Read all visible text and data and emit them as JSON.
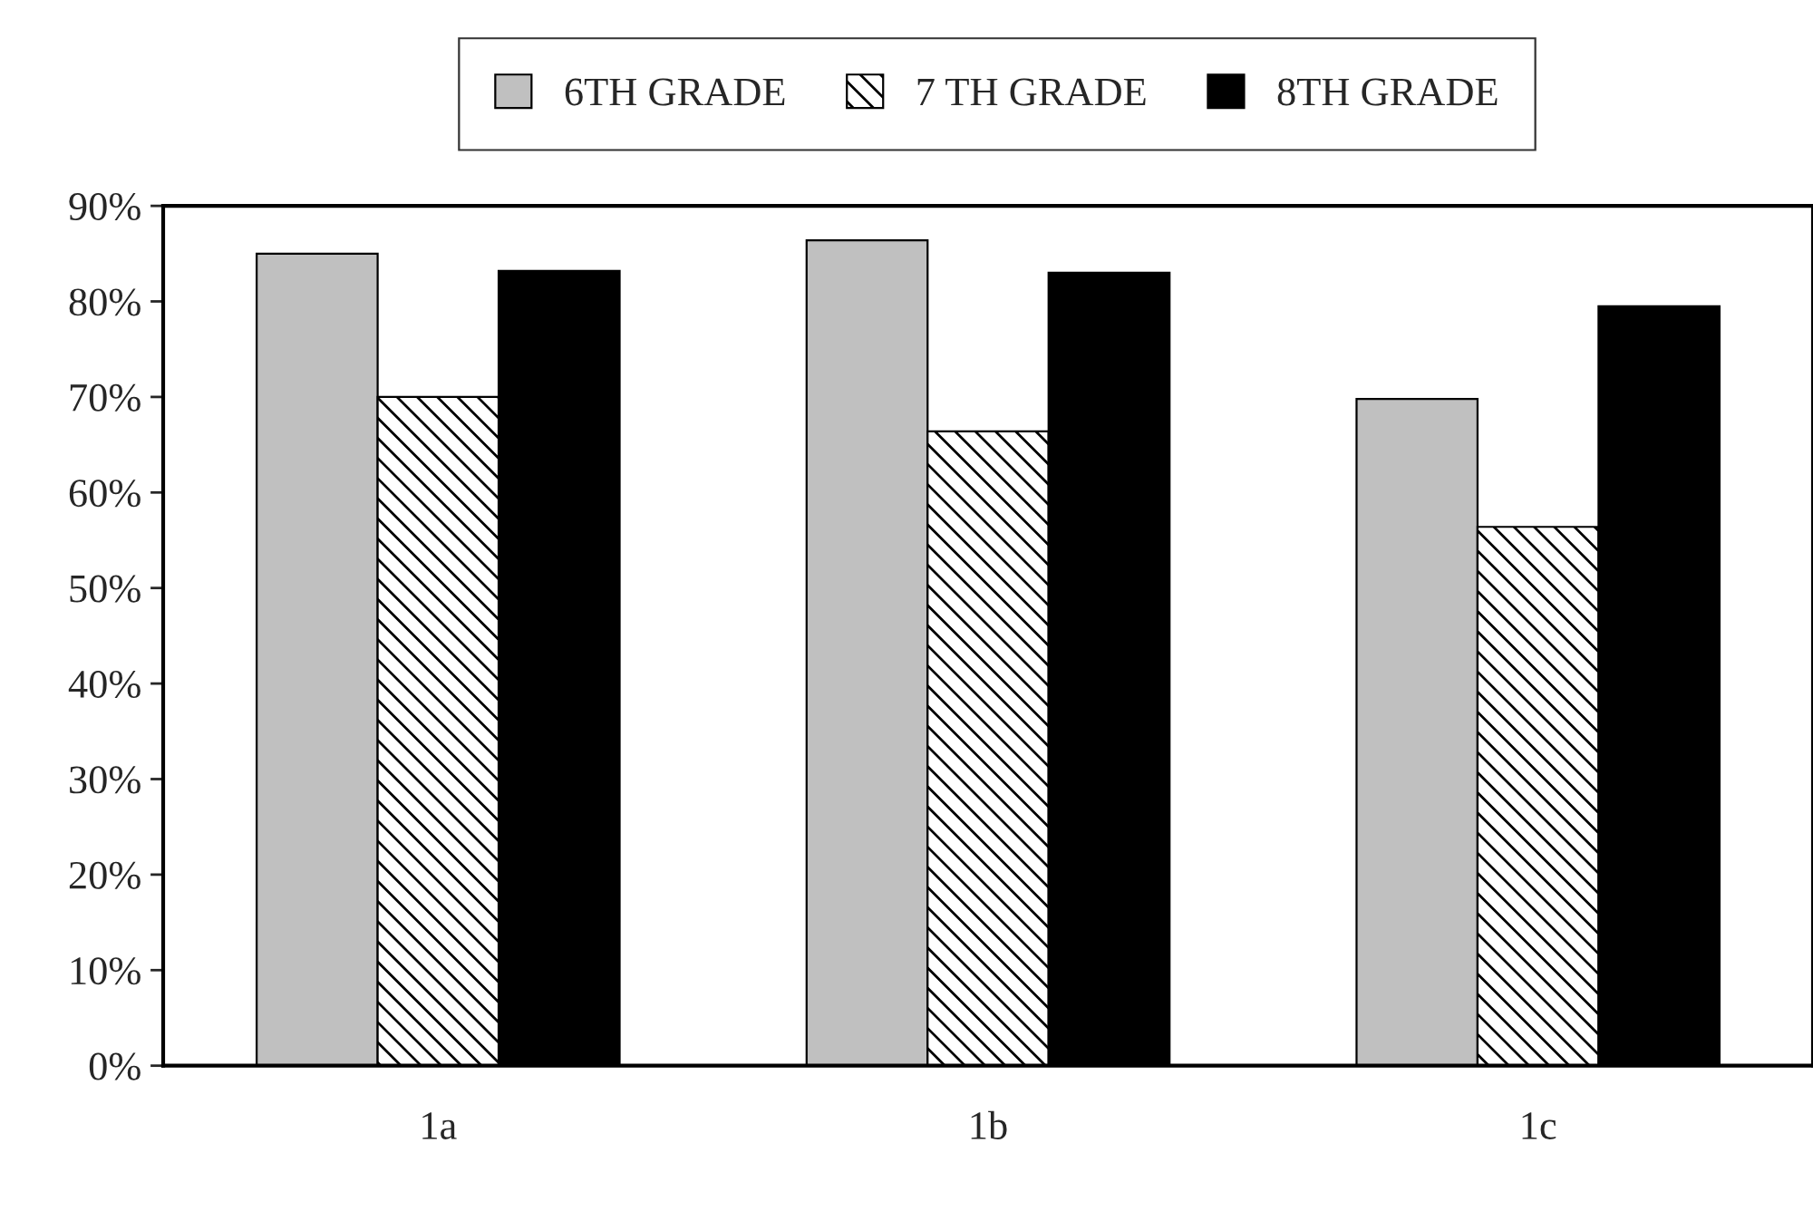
{
  "chart_data": {
    "type": "bar",
    "categories": [
      "1a",
      "1b",
      "1c"
    ],
    "series": [
      {
        "name": "6TH GRADE",
        "color": "#c0c0c0",
        "values": [
          85,
          86.4,
          69.8
        ]
      },
      {
        "name": "7 TH GRADE",
        "color": "#ffffff",
        "values": [
          70,
          66.4,
          56.4
        ]
      },
      {
        "name": "8TH GRADE",
        "color": "#000000",
        "values": [
          83.2,
          83,
          79.5
        ]
      }
    ],
    "ylim": [
      0,
      90
    ],
    "yticks": [
      {
        "value": 0,
        "label": "0%"
      },
      {
        "value": 10,
        "label": "10%"
      },
      {
        "value": 20,
        "label": "20%"
      },
      {
        "value": 30,
        "label": "30%"
      },
      {
        "value": 40,
        "label": "40%"
      },
      {
        "value": 50,
        "label": "50%"
      },
      {
        "value": 60,
        "label": "60%"
      },
      {
        "value": 70,
        "label": "70%"
      },
      {
        "value": 80,
        "label": "80%"
      },
      {
        "value": 90,
        "label": "90%"
      }
    ],
    "legend": "top"
  }
}
